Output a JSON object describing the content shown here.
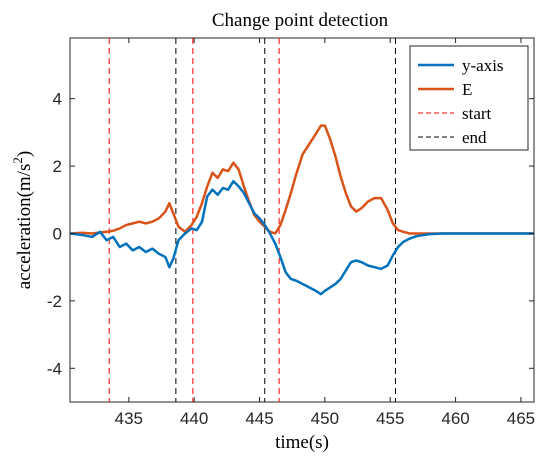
{
  "chart_data": {
    "type": "line",
    "title": "Change point detection",
    "xlabel": "time(s)",
    "ylabel": "acceleration(m/s",
    "ylabel_sup": "2",
    "ylabel_close": ")",
    "xlim": [
      430.5,
      466
    ],
    "ylim": [
      -5,
      5.8
    ],
    "xticks": [
      "435",
      "440",
      "445",
      "450",
      "455",
      "460",
      "465"
    ],
    "yticks": [
      "-4",
      "-2",
      "0",
      "2",
      "4"
    ],
    "grid": false,
    "legend_position": "top-right",
    "colors": {
      "y_axis": "#0072BD",
      "E": "#D95319",
      "start": "#FF0000",
      "end": "#000000"
    },
    "series": [
      {
        "name": "y-axis",
        "x": [
          430.5,
          431.5,
          432.2,
          432.8,
          433.3,
          433.8,
          434.3,
          434.8,
          435.3,
          435.8,
          436.3,
          436.8,
          437.3,
          437.8,
          438.1,
          438.4,
          438.8,
          439.3,
          439.8,
          440.2,
          440.6,
          441.0,
          441.4,
          441.8,
          442.2,
          442.6,
          443.0,
          443.4,
          443.8,
          444.2,
          444.6,
          445.0,
          445.4,
          445.8,
          446.2,
          446.6,
          447.0,
          447.4,
          447.8,
          448.3,
          448.8,
          449.3,
          449.7,
          450.0,
          450.4,
          450.8,
          451.2,
          451.6,
          452.0,
          452.4,
          452.8,
          453.3,
          453.8,
          454.3,
          454.8,
          455.2,
          455.6,
          456.0,
          456.5,
          457.0,
          458.0,
          459.0,
          460.0,
          466.0
        ],
        "y": [
          0.0,
          -0.05,
          -0.1,
          0.05,
          -0.2,
          -0.1,
          -0.4,
          -0.3,
          -0.5,
          -0.4,
          -0.55,
          -0.45,
          -0.6,
          -0.7,
          -1.0,
          -0.75,
          -0.2,
          0.0,
          0.15,
          0.1,
          0.35,
          1.1,
          1.3,
          1.15,
          1.35,
          1.3,
          1.55,
          1.4,
          1.2,
          0.9,
          0.6,
          0.45,
          0.25,
          0.0,
          -0.3,
          -0.7,
          -1.15,
          -1.35,
          -1.4,
          -1.5,
          -1.6,
          -1.7,
          -1.8,
          -1.7,
          -1.6,
          -1.5,
          -1.35,
          -1.1,
          -0.85,
          -0.8,
          -0.85,
          -0.95,
          -1.0,
          -1.05,
          -0.95,
          -0.65,
          -0.4,
          -0.25,
          -0.15,
          -0.08,
          -0.02,
          0.0,
          0.0,
          0.0
        ]
      },
      {
        "name": "E",
        "x": [
          430.5,
          431.5,
          432.2,
          432.8,
          433.3,
          433.8,
          434.3,
          434.8,
          435.3,
          435.8,
          436.3,
          436.8,
          437.3,
          437.8,
          438.1,
          438.4,
          438.8,
          439.3,
          439.8,
          440.2,
          440.6,
          441.0,
          441.4,
          441.8,
          442.2,
          442.6,
          443.0,
          443.4,
          443.8,
          444.2,
          444.6,
          445.0,
          445.4,
          445.8,
          446.2,
          446.6,
          447.0,
          447.4,
          447.8,
          448.3,
          448.8,
          449.3,
          449.7,
          450.0,
          450.4,
          450.8,
          451.2,
          451.6,
          452.0,
          452.4,
          452.8,
          453.3,
          453.8,
          454.3,
          454.8,
          455.2,
          455.6,
          456.0,
          456.5,
          457.0,
          458.0,
          459.0,
          460.0,
          466.0
        ],
        "y": [
          0.0,
          0.02,
          0.0,
          0.03,
          0.05,
          0.08,
          0.15,
          0.25,
          0.3,
          0.35,
          0.3,
          0.35,
          0.45,
          0.65,
          0.9,
          0.6,
          0.2,
          0.05,
          0.25,
          0.5,
          0.9,
          1.4,
          1.8,
          1.65,
          1.9,
          1.85,
          2.1,
          1.9,
          1.4,
          0.95,
          0.55,
          0.35,
          0.2,
          0.05,
          0.0,
          0.25,
          0.7,
          1.2,
          1.75,
          2.35,
          2.65,
          2.95,
          3.2,
          3.2,
          2.8,
          2.3,
          1.7,
          1.2,
          0.8,
          0.65,
          0.75,
          0.95,
          1.05,
          1.05,
          0.7,
          0.3,
          0.1,
          0.05,
          0.0,
          0.0,
          0.0,
          0.0,
          0.0,
          0.0
        ]
      },
      {
        "name": "start",
        "style": "dashed-vertical",
        "x_positions": [
          433.5,
          439.9,
          446.5
        ]
      },
      {
        "name": "end",
        "style": "dashed-vertical",
        "x_positions": [
          438.6,
          445.4,
          455.4
        ]
      }
    ]
  }
}
